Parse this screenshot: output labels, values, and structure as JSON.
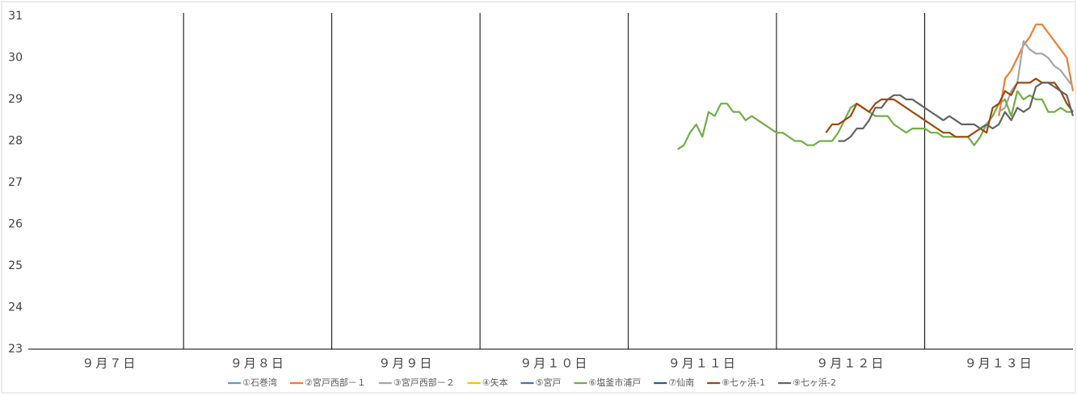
{
  "chart_data": {
    "type": "line",
    "xlim": [
      0,
      168
    ],
    "xticks": [
      {
        "value": 12,
        "label": "９月７日"
      },
      {
        "value": 36,
        "label": "９月８日"
      },
      {
        "value": 60,
        "label": "９月９日"
      },
      {
        "value": 84,
        "label": "９月１０日"
      },
      {
        "value": 108,
        "label": "９月１１日"
      },
      {
        "value": 132,
        "label": "９月１２日"
      },
      {
        "value": 156,
        "label": "９月１３日"
      }
    ],
    "xgrid": [
      24,
      48,
      72,
      96,
      120,
      144
    ],
    "ylim": [
      23,
      31
    ],
    "yticks": [
      23,
      24,
      25,
      26,
      27,
      28,
      29,
      30,
      31
    ],
    "legend": "bottom",
    "series": [
      {
        "name": "①石巻湾",
        "color": "#5b9bd5",
        "x": [],
        "values": []
      },
      {
        "name": "②宮戸西部－１",
        "color": "#ed7d31",
        "x": [
          156,
          157,
          158,
          159,
          160,
          161,
          162,
          163,
          164,
          165,
          166,
          167,
          168
        ],
        "values": [
          28.6,
          29.5,
          29.7,
          30.0,
          30.3,
          30.5,
          30.8,
          30.8,
          30.6,
          30.4,
          30.2,
          30.0,
          29.2
        ]
      },
      {
        "name": "③宮戸西部－２",
        "color": "#a5a5a5",
        "x": [
          156,
          157,
          158,
          159,
          160,
          161,
          162,
          163,
          164,
          165,
          166,
          167,
          168
        ],
        "values": [
          28.7,
          28.8,
          29.2,
          29.4,
          30.4,
          30.2,
          30.1,
          30.1,
          30.0,
          29.8,
          29.7,
          29.5,
          29.3
        ]
      },
      {
        "name": "④矢本",
        "color": "#ffc000",
        "x": [],
        "values": []
      },
      {
        "name": "⑤宮戸",
        "color": "#4472c4",
        "x": [],
        "values": []
      },
      {
        "name": "⑥塩釜市浦戸",
        "color": "#70ad47",
        "x": [
          104,
          105,
          106,
          107,
          108,
          109,
          110,
          111,
          112,
          113,
          114,
          115,
          116,
          117,
          118,
          119,
          120,
          121,
          122,
          123,
          124,
          125,
          126,
          127,
          128,
          129,
          130,
          131,
          132,
          133,
          134,
          135,
          136,
          137,
          138,
          139,
          140,
          141,
          142,
          143,
          144,
          145,
          146,
          147,
          148,
          149,
          150,
          151,
          152,
          153,
          154,
          155,
          156,
          157,
          158,
          159,
          160,
          161,
          162,
          163,
          164,
          165,
          166,
          167,
          168
        ],
        "values": [
          27.8,
          27.9,
          28.2,
          28.4,
          28.1,
          28.7,
          28.6,
          28.9,
          28.9,
          28.7,
          28.7,
          28.5,
          28.6,
          28.5,
          28.4,
          28.3,
          28.2,
          28.2,
          28.1,
          28.0,
          28.0,
          27.9,
          27.9,
          28.0,
          28.0,
          28.0,
          28.2,
          28.5,
          28.8,
          28.9,
          28.8,
          28.7,
          28.6,
          28.6,
          28.6,
          28.4,
          28.3,
          28.2,
          28.3,
          28.3,
          28.3,
          28.2,
          28.2,
          28.1,
          28.1,
          28.1,
          28.1,
          28.1,
          27.9,
          28.1,
          28.4,
          28.6,
          28.9,
          29.0,
          28.6,
          29.2,
          29.0,
          29.1,
          29.0,
          29.0,
          28.7,
          28.7,
          28.8,
          28.7,
          28.7
        ]
      },
      {
        "name": "⑦仙南",
        "color": "#255e91",
        "x": [],
        "values": []
      },
      {
        "name": "⑧七ヶ浜-1",
        "color": "#9e480e",
        "x": [
          128,
          129,
          130,
          131,
          132,
          133,
          134,
          135,
          136,
          137,
          138,
          139,
          140,
          141,
          142,
          143,
          144,
          145,
          146,
          147,
          148,
          149,
          150,
          151,
          152,
          153,
          154,
          155,
          156,
          157,
          158,
          159,
          160,
          161,
          162,
          163,
          164,
          165,
          166,
          167,
          168
        ],
        "values": [
          28.2,
          28.4,
          28.4,
          28.5,
          28.6,
          28.9,
          28.8,
          28.7,
          28.9,
          29.0,
          29.0,
          29.0,
          28.9,
          28.8,
          28.7,
          28.6,
          28.5,
          28.4,
          28.3,
          28.2,
          28.2,
          28.1,
          28.1,
          28.1,
          28.2,
          28.3,
          28.2,
          28.8,
          28.9,
          29.2,
          29.1,
          29.4,
          29.4,
          29.4,
          29.5,
          29.4,
          29.4,
          29.4,
          29.2,
          28.9,
          28.7
        ]
      },
      {
        "name": "⑨七ヶ浜-2",
        "color": "#636363",
        "x": [
          130,
          131,
          132,
          133,
          134,
          135,
          136,
          137,
          138,
          139,
          140,
          141,
          142,
          143,
          144,
          145,
          146,
          147,
          148,
          149,
          150,
          151,
          152,
          153,
          154,
          155,
          156,
          157,
          158,
          159,
          160,
          161,
          162,
          163,
          164,
          165,
          166,
          167,
          168
        ],
        "values": [
          28.0,
          28.0,
          28.1,
          28.3,
          28.3,
          28.5,
          28.8,
          28.8,
          29.0,
          29.1,
          29.1,
          29.0,
          29.0,
          28.9,
          28.8,
          28.7,
          28.6,
          28.5,
          28.6,
          28.5,
          28.4,
          28.4,
          28.4,
          28.3,
          28.4,
          28.3,
          28.4,
          28.7,
          28.5,
          28.8,
          28.7,
          28.8,
          29.3,
          29.4,
          29.4,
          29.3,
          29.2,
          29.1,
          28.6
        ]
      }
    ]
  }
}
